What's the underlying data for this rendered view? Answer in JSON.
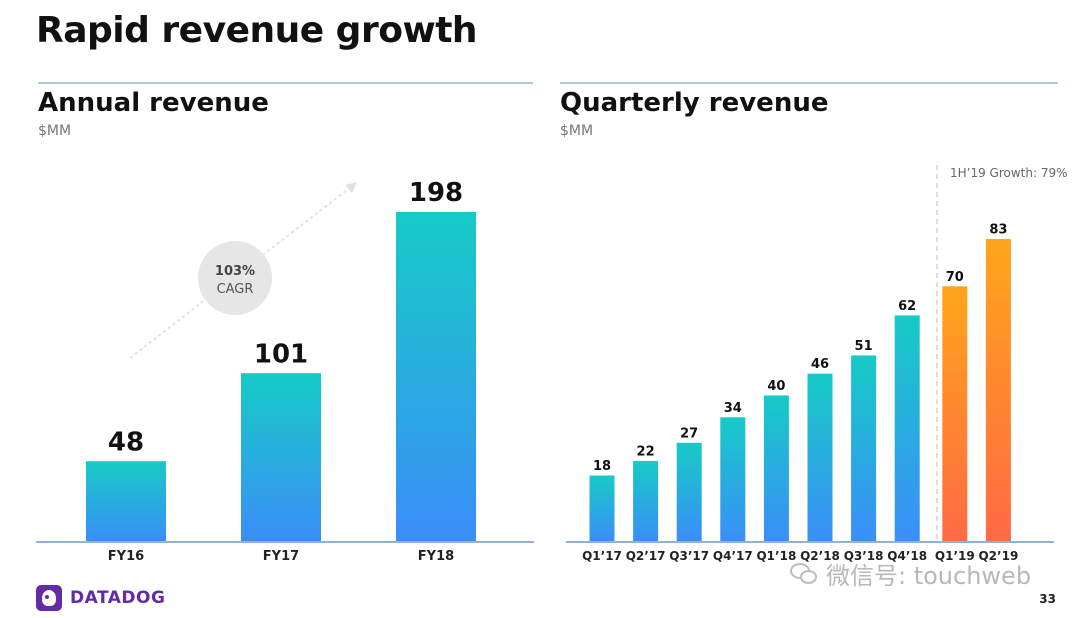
{
  "slide": {
    "title": "Rapid revenue growth",
    "page_number": "33",
    "brand": "DATADOG",
    "watermark": "微信号: touchweb"
  },
  "left_panel": {
    "title": "Annual revenue",
    "unit": "$MM",
    "badge_line1": "103%",
    "badge_line2": "CAGR"
  },
  "right_panel": {
    "title": "Quarterly revenue",
    "unit": "$MM",
    "growth_note": "1H’19 Growth: 79%"
  },
  "colors": {
    "teal": "#16cbc6",
    "blue": "#3a8ef8",
    "orange_top": "#ffa51a",
    "orange_bottom": "#ff6a45",
    "axis": "#8fb3d6"
  },
  "chart_data": [
    {
      "type": "bar",
      "title": "Annual revenue",
      "ylabel": "$MM",
      "categories": [
        "FY16",
        "FY17",
        "FY18"
      ],
      "values": [
        48,
        101,
        198
      ],
      "ylim": [
        0,
        198
      ],
      "grid": false,
      "legend": "none"
    },
    {
      "type": "bar",
      "title": "Quarterly revenue",
      "ylabel": "$MM",
      "categories": [
        "Q1’17",
        "Q2’17",
        "Q3’17",
        "Q4’17",
        "Q1’18",
        "Q2’18",
        "Q3’18",
        "Q4’18",
        "Q1’19",
        "Q2’19"
      ],
      "values": [
        18,
        22,
        27,
        34,
        40,
        46,
        51,
        62,
        70,
        83
      ],
      "highlighted": [
        "Q1’19",
        "Q2’19"
      ],
      "ylim": [
        0,
        83
      ],
      "grid": false,
      "legend": "none"
    }
  ]
}
